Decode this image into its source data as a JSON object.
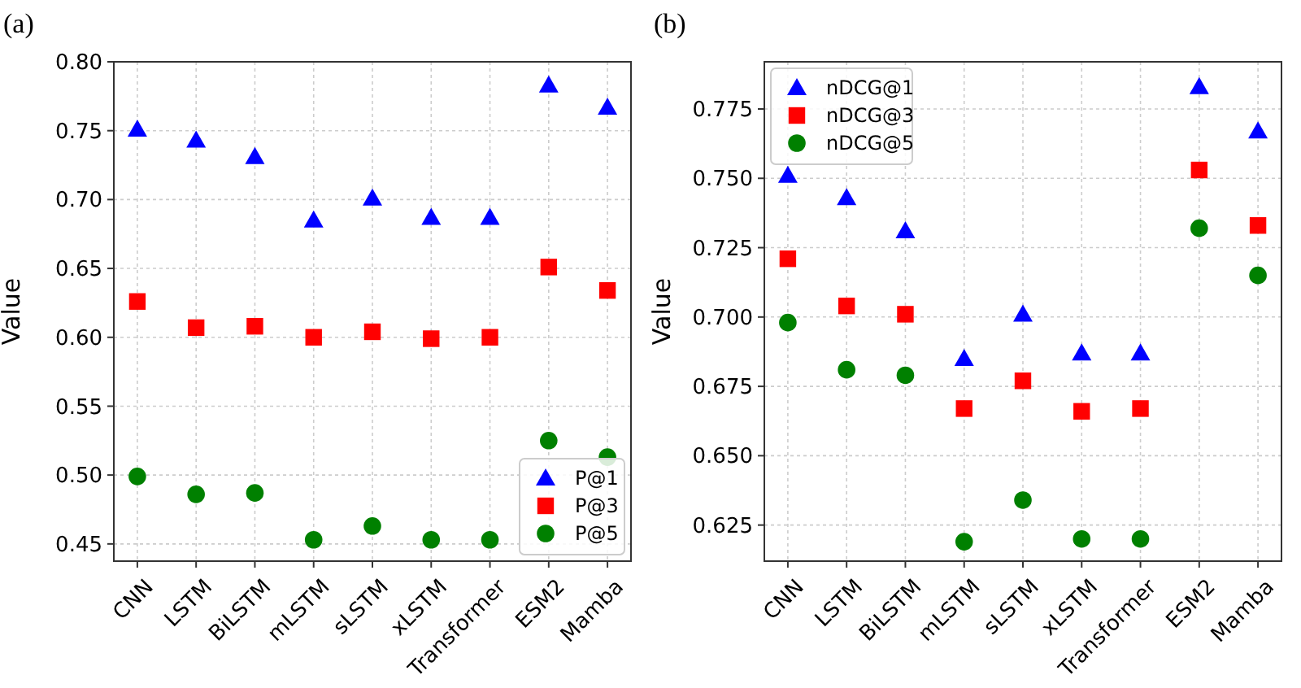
{
  "chart_data": [
    {
      "type": "scatter",
      "title": "(a)",
      "ylabel": "Value",
      "categories": [
        "CNN",
        "LSTM",
        "BiLSTM",
        "mLSTM",
        "sLSTM",
        "xLSTM",
        "Transformer",
        "ESM2",
        "Mamba"
      ],
      "ylim": [
        0.4375,
        0.8
      ],
      "yticks": [
        {
          "value": 0.45,
          "label": "0.45"
        },
        {
          "value": 0.5,
          "label": "0.50"
        },
        {
          "value": 0.55,
          "label": "0.55"
        },
        {
          "value": 0.6,
          "label": "0.60"
        },
        {
          "value": 0.65,
          "label": "0.65"
        },
        {
          "value": 0.7,
          "label": "0.70"
        },
        {
          "value": 0.75,
          "label": "0.75"
        },
        {
          "value": 0.8,
          "label": "0.80"
        }
      ],
      "grid": true,
      "legend": "bottom right",
      "series": [
        {
          "name": "P@1",
          "color": "#0000ff",
          "marker": "triangle",
          "values": [
            0.751,
            0.743,
            0.731,
            0.685,
            0.701,
            0.687,
            0.687,
            0.783,
            0.767
          ]
        },
        {
          "name": "P@3",
          "color": "#ff0000",
          "marker": "square",
          "values": [
            0.626,
            0.607,
            0.608,
            0.6,
            0.604,
            0.599,
            0.6,
            0.651,
            0.634
          ]
        },
        {
          "name": "P@5",
          "color": "#008000",
          "marker": "circle",
          "values": [
            0.499,
            0.486,
            0.487,
            0.453,
            0.463,
            0.453,
            0.453,
            0.525,
            0.513
          ]
        }
      ]
    },
    {
      "type": "scatter",
      "title": "(b)",
      "ylabel": "Value",
      "categories": [
        "CNN",
        "LSTM",
        "BiLSTM",
        "mLSTM",
        "sLSTM",
        "xLSTM",
        "Transformer",
        "ESM2",
        "Mamba"
      ],
      "ylim": [
        0.612,
        0.792
      ],
      "yticks": [
        {
          "value": 0.625,
          "label": "0.625"
        },
        {
          "value": 0.65,
          "label": "0.650"
        },
        {
          "value": 0.675,
          "label": "0.675"
        },
        {
          "value": 0.7,
          "label": "0.700"
        },
        {
          "value": 0.725,
          "label": "0.725"
        },
        {
          "value": 0.75,
          "label": "0.750"
        },
        {
          "value": 0.775,
          "label": "0.775"
        }
      ],
      "grid": true,
      "legend": "top left",
      "series": [
        {
          "name": "nDCG@1",
          "color": "#0000ff",
          "marker": "triangle",
          "values": [
            0.751,
            0.743,
            0.731,
            0.685,
            0.701,
            0.687,
            0.687,
            0.783,
            0.767
          ]
        },
        {
          "name": "nDCG@3",
          "color": "#ff0000",
          "marker": "square",
          "values": [
            0.721,
            0.704,
            0.701,
            0.667,
            0.677,
            0.666,
            0.667,
            0.753,
            0.733
          ]
        },
        {
          "name": "nDCG@5",
          "color": "#008000",
          "marker": "circle",
          "values": [
            0.698,
            0.681,
            0.679,
            0.619,
            0.634,
            0.62,
            0.62,
            0.732,
            0.715
          ]
        }
      ]
    }
  ]
}
